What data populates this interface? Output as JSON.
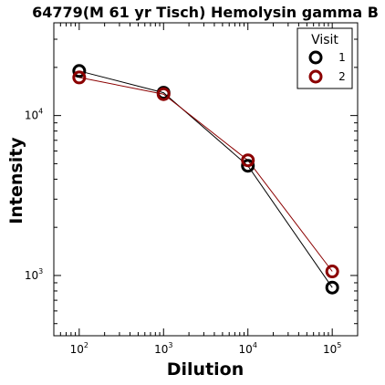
{
  "chart_data": {
    "type": "line",
    "title": "64779(M 61 yr Tisch) Hemolysin gamma B",
    "xlabel": "Dilution",
    "ylabel": "Intensity",
    "xscale": "log",
    "yscale": "log",
    "xlim": [
      50,
      200000
    ],
    "ylim": [
      420,
      38000
    ],
    "xticks": [
      {
        "base": "10",
        "exp": "2",
        "value": 100
      },
      {
        "base": "10",
        "exp": "3",
        "value": 1000
      },
      {
        "base": "10",
        "exp": "4",
        "value": 10000
      },
      {
        "base": "10",
        "exp": "5",
        "value": 100000
      }
    ],
    "yticks": [
      {
        "base": "10",
        "exp": "3",
        "value": 1000
      },
      {
        "base": "10",
        "exp": "4",
        "value": 10000
      }
    ],
    "x": [
      100,
      1000,
      10000,
      100000
    ],
    "series": [
      {
        "name": "1",
        "color": "#000000",
        "values": [
          19000,
          13900,
          4850,
          840
        ]
      },
      {
        "name": "2",
        "color": "#8b0000",
        "values": [
          17300,
          13600,
          5250,
          1060
        ]
      }
    ],
    "legend": {
      "title": "Visit",
      "placement": "top-right"
    },
    "grid": false,
    "marker": "hollow-circle"
  }
}
